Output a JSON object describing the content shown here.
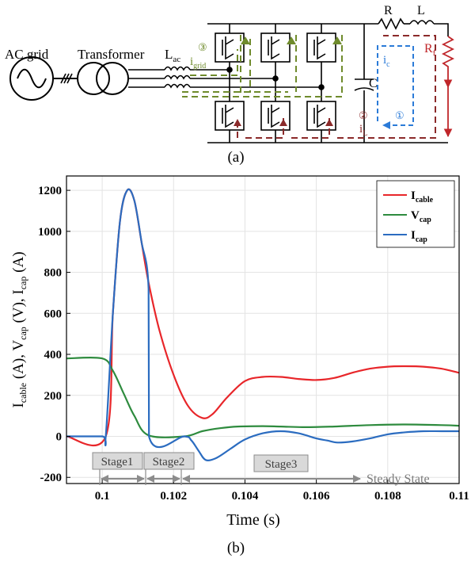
{
  "figure": {
    "caption_a": "(a)",
    "caption_b": "(b)",
    "colors": {
      "cable": "#e8262a",
      "cap_v": "#2e8b3e",
      "cap_i": "#2b6cc0",
      "olive": "#6f8b2c",
      "maroon": "#8b2a2a",
      "blue_dash": "#2b7bd8",
      "stage_fill": "#d9d9d9",
      "arrow_gray": "#8c8c8c"
    }
  },
  "circuit": {
    "ac_grid_label": "AC grid",
    "transformer_label": "Transformer",
    "l_ac": {
      "main": "L",
      "sub": "ac"
    },
    "r_label": "R",
    "l_label": "L",
    "rf": {
      "main": "R",
      "sub": "f"
    },
    "c_label": "C",
    "i_c": {
      "main": "i",
      "sub": "c"
    },
    "i_grid": {
      "main": "i",
      "sub": "grid"
    },
    "i_l": {
      "main": "i",
      "sub": "L"
    },
    "markers": [
      "③",
      "②",
      "①"
    ]
  },
  "chart_data": {
    "type": "line",
    "xlabel": "Time (s)",
    "ylabel_parts": [
      {
        "main": "I",
        "sub": "cable"
      },
      {
        "main": " (A), V",
        "sub": "cap"
      },
      {
        "main": " (V), I",
        "sub": "cap"
      },
      {
        "main": " (A)",
        "sub": ""
      }
    ],
    "xlim": [
      0.099,
      0.11
    ],
    "ylim": [
      -230,
      1270
    ],
    "xticks": [
      0.1,
      0.102,
      0.104,
      0.106,
      0.108,
      0.11
    ],
    "xtick_labels": [
      "0.1",
      "0.102",
      "0.104",
      "0.106",
      "0.108",
      "0.11"
    ],
    "yticks": [
      -200,
      0,
      200,
      400,
      600,
      800,
      1000,
      1200
    ],
    "ytick_labels": [
      "-200",
      "0",
      "200",
      "400",
      "600",
      "800",
      "1000",
      "1200"
    ],
    "grid": true,
    "legend_position": "top-right",
    "series": [
      {
        "name": "I",
        "sub": "cable",
        "color": "#e8262a",
        "x": [
          0.099,
          0.1001,
          0.1003,
          0.1005,
          0.1007,
          0.1009,
          0.1011,
          0.1013,
          0.1016,
          0.102,
          0.1024,
          0.1028,
          0.1031,
          0.1035,
          0.104,
          0.1045,
          0.105,
          0.1055,
          0.106,
          0.1065,
          0.107,
          0.1075,
          0.108,
          0.1085,
          0.109,
          0.1095,
          0.11
        ],
        "y": [
          0,
          0,
          600,
          1050,
          1200,
          1150,
          950,
          750,
          520,
          300,
          150,
          90,
          110,
          190,
          270,
          290,
          290,
          280,
          275,
          285,
          310,
          330,
          340,
          342,
          340,
          330,
          310
        ]
      },
      {
        "name": "V",
        "sub": "cap",
        "color": "#2e8b3e",
        "x": [
          0.099,
          0.1,
          0.1003,
          0.1006,
          0.1009,
          0.1013,
          0.1023,
          0.1028,
          0.1033,
          0.1038,
          0.1045,
          0.105,
          0.1057,
          0.1065,
          0.1075,
          0.1085,
          0.1095,
          0.11
        ],
        "y": [
          380,
          380,
          320,
          210,
          100,
          5,
          0,
          25,
          40,
          48,
          50,
          48,
          45,
          48,
          55,
          58,
          55,
          52
        ]
      },
      {
        "name": "I",
        "sub": "cap",
        "color": "#2b6cc0",
        "x": [
          0.099,
          0.1,
          0.1001,
          0.1003,
          0.1005,
          0.1007,
          0.1009,
          0.1011,
          0.1013,
          0.10131,
          0.1023,
          0.1025,
          0.1027,
          0.1029,
          0.1032,
          0.1036,
          0.104,
          0.1045,
          0.105,
          0.1055,
          0.106,
          0.1063,
          0.1066,
          0.107,
          0.1075,
          0.108,
          0.1085,
          0.109,
          0.1095,
          0.11
        ],
        "y": [
          0,
          0,
          0,
          600,
          1050,
          1200,
          1150,
          950,
          720,
          0,
          0,
          -20,
          -70,
          -115,
          -105,
          -60,
          -15,
          15,
          25,
          15,
          -10,
          -20,
          -30,
          -25,
          -10,
          10,
          20,
          25,
          25,
          25
        ]
      }
    ],
    "annotations": {
      "stages": [
        "Stage1",
        "Stage2",
        "Stage3"
      ],
      "steady_state": "Steady State"
    }
  }
}
